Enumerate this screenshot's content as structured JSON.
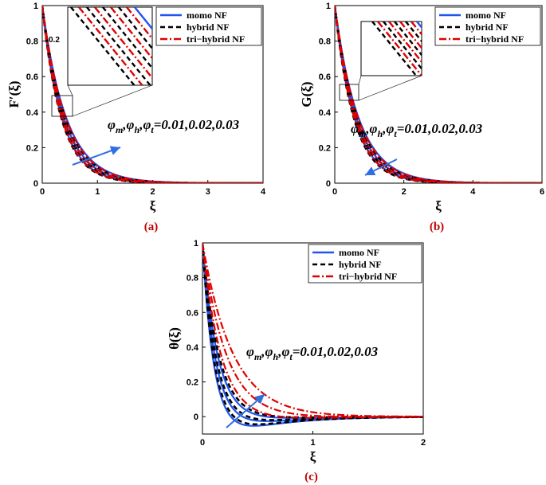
{
  "colors": {
    "mono": "#2255ee",
    "hybrid": "#000000",
    "tri": "#e00000",
    "arrow": "#2f6fe0",
    "caption": "#c00000"
  },
  "legend": [
    "momo NF",
    "hybrid NF",
    "tri−hybrid NF"
  ],
  "chart_data": [
    {
      "type": "line",
      "id": "a",
      "caption": "(a)",
      "ylabel": "F′(ξ)",
      "xlabel": "ξ",
      "xlim": [
        0,
        4
      ],
      "ylim": [
        0,
        1
      ],
      "xticks": [
        "0",
        "1",
        "2",
        "3",
        "4"
      ],
      "yticks": [
        "0",
        "0.2",
        "0.4",
        "0.6",
        "0.8",
        "1"
      ],
      "annotation": "φm,φh,φt=0.01,0.02,0.03",
      "inset_label": "0.2",
      "series": [
        {
          "name": "momo NF",
          "decay": [
            2.3,
            2.55,
            2.8
          ]
        },
        {
          "name": "hybrid NF",
          "decay": [
            2.4,
            2.65,
            2.9
          ]
        },
        {
          "name": "tri−hybrid NF",
          "decay": [
            2.35,
            2.6,
            2.85
          ]
        }
      ],
      "x_sample": [
        0,
        0.5,
        1,
        1.5,
        2,
        3,
        4
      ],
      "values_mono_mid": [
        1,
        0.28,
        0.08,
        0.03,
        0.01,
        0.0,
        0.0
      ]
    },
    {
      "type": "line",
      "id": "b",
      "caption": "(b)",
      "ylabel": "G(ξ)",
      "xlabel": "ξ",
      "xlim": [
        0,
        6
      ],
      "ylim": [
        0,
        1
      ],
      "xticks": [
        "0",
        "2",
        "4",
        "6"
      ],
      "yticks": [
        "0",
        "0.2",
        "0.4",
        "0.6",
        "0.8",
        "1"
      ],
      "annotation": "φm,φh,φt=0.01,0.02,0.03",
      "series": [
        {
          "name": "momo NF",
          "decay": [
            1.45,
            1.6,
            1.75
          ]
        },
        {
          "name": "hybrid NF",
          "decay": [
            1.52,
            1.67,
            1.82
          ]
        },
        {
          "name": "tri−hybrid NF",
          "decay": [
            1.48,
            1.63,
            1.78
          ]
        }
      ],
      "x_sample": [
        0,
        1,
        2,
        3,
        4,
        6
      ],
      "values_mono_mid": [
        1,
        0.2,
        0.04,
        0.01,
        0.0,
        0.0
      ]
    },
    {
      "type": "line",
      "id": "c",
      "caption": "(c)",
      "ylabel": "θ(ξ)",
      "xlabel": "ξ",
      "xlim": [
        0,
        2
      ],
      "ylim": [
        -0.1,
        1
      ],
      "xticks": [
        "0",
        "1",
        "2"
      ],
      "yticks": [
        "0",
        "0.2",
        "0.4",
        "0.6",
        "0.8",
        "1"
      ],
      "annotation": "φm,φh,φt=0.01,0.02,0.03",
      "series": [
        {
          "name": "momo NF",
          "decay": [
            9.0,
            8.0,
            7.0
          ],
          "undershoot": [
            0.06,
            0.04,
            0.02
          ]
        },
        {
          "name": "hybrid NF",
          "decay": [
            8.6,
            7.6,
            6.6
          ],
          "undershoot": [
            0.055,
            0.035,
            0.015
          ]
        },
        {
          "name": "tri−hybrid NF",
          "decay": [
            5.5,
            4.5,
            3.6
          ],
          "undershoot": [
            0.03,
            0.015,
            0.005
          ]
        }
      ],
      "x_sample": [
        0,
        0.25,
        0.5,
        1,
        1.5,
        2
      ],
      "values_mono_mid": [
        1,
        0.1,
        -0.04,
        -0.01,
        0.0,
        0.0
      ]
    }
  ]
}
